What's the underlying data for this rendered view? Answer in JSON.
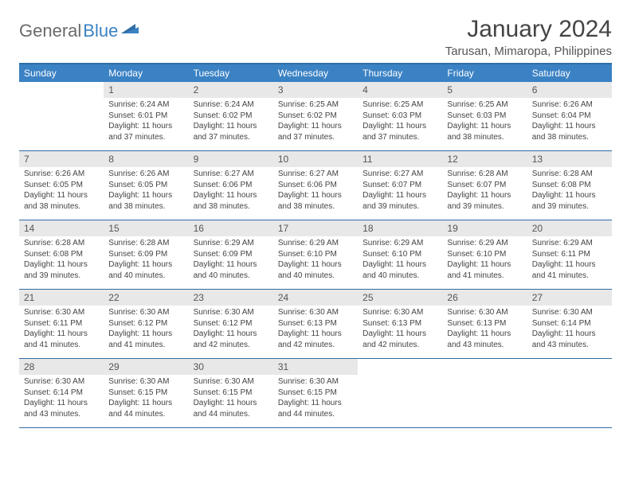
{
  "logo": {
    "text1": "General",
    "text2": "Blue"
  },
  "title": "January 2024",
  "location": "Tarusan, Mimaropa, Philippines",
  "colors": {
    "header_bg": "#3b82c4",
    "header_border": "#2e6da4",
    "daynum_bg": "#e8e8e8",
    "text": "#444444"
  },
  "day_names": [
    "Sunday",
    "Monday",
    "Tuesday",
    "Wednesday",
    "Thursday",
    "Friday",
    "Saturday"
  ],
  "weeks": [
    [
      {
        "n": "",
        "blank": true
      },
      {
        "n": "1",
        "sr": "Sunrise: 6:24 AM",
        "ss": "Sunset: 6:01 PM",
        "d1": "Daylight: 11 hours",
        "d2": "and 37 minutes."
      },
      {
        "n": "2",
        "sr": "Sunrise: 6:24 AM",
        "ss": "Sunset: 6:02 PM",
        "d1": "Daylight: 11 hours",
        "d2": "and 37 minutes."
      },
      {
        "n": "3",
        "sr": "Sunrise: 6:25 AM",
        "ss": "Sunset: 6:02 PM",
        "d1": "Daylight: 11 hours",
        "d2": "and 37 minutes."
      },
      {
        "n": "4",
        "sr": "Sunrise: 6:25 AM",
        "ss": "Sunset: 6:03 PM",
        "d1": "Daylight: 11 hours",
        "d2": "and 37 minutes."
      },
      {
        "n": "5",
        "sr": "Sunrise: 6:25 AM",
        "ss": "Sunset: 6:03 PM",
        "d1": "Daylight: 11 hours",
        "d2": "and 38 minutes."
      },
      {
        "n": "6",
        "sr": "Sunrise: 6:26 AM",
        "ss": "Sunset: 6:04 PM",
        "d1": "Daylight: 11 hours",
        "d2": "and 38 minutes."
      }
    ],
    [
      {
        "n": "7",
        "sr": "Sunrise: 6:26 AM",
        "ss": "Sunset: 6:05 PM",
        "d1": "Daylight: 11 hours",
        "d2": "and 38 minutes."
      },
      {
        "n": "8",
        "sr": "Sunrise: 6:26 AM",
        "ss": "Sunset: 6:05 PM",
        "d1": "Daylight: 11 hours",
        "d2": "and 38 minutes."
      },
      {
        "n": "9",
        "sr": "Sunrise: 6:27 AM",
        "ss": "Sunset: 6:06 PM",
        "d1": "Daylight: 11 hours",
        "d2": "and 38 minutes."
      },
      {
        "n": "10",
        "sr": "Sunrise: 6:27 AM",
        "ss": "Sunset: 6:06 PM",
        "d1": "Daylight: 11 hours",
        "d2": "and 38 minutes."
      },
      {
        "n": "11",
        "sr": "Sunrise: 6:27 AM",
        "ss": "Sunset: 6:07 PM",
        "d1": "Daylight: 11 hours",
        "d2": "and 39 minutes."
      },
      {
        "n": "12",
        "sr": "Sunrise: 6:28 AM",
        "ss": "Sunset: 6:07 PM",
        "d1": "Daylight: 11 hours",
        "d2": "and 39 minutes."
      },
      {
        "n": "13",
        "sr": "Sunrise: 6:28 AM",
        "ss": "Sunset: 6:08 PM",
        "d1": "Daylight: 11 hours",
        "d2": "and 39 minutes."
      }
    ],
    [
      {
        "n": "14",
        "sr": "Sunrise: 6:28 AM",
        "ss": "Sunset: 6:08 PM",
        "d1": "Daylight: 11 hours",
        "d2": "and 39 minutes."
      },
      {
        "n": "15",
        "sr": "Sunrise: 6:28 AM",
        "ss": "Sunset: 6:09 PM",
        "d1": "Daylight: 11 hours",
        "d2": "and 40 minutes."
      },
      {
        "n": "16",
        "sr": "Sunrise: 6:29 AM",
        "ss": "Sunset: 6:09 PM",
        "d1": "Daylight: 11 hours",
        "d2": "and 40 minutes."
      },
      {
        "n": "17",
        "sr": "Sunrise: 6:29 AM",
        "ss": "Sunset: 6:10 PM",
        "d1": "Daylight: 11 hours",
        "d2": "and 40 minutes."
      },
      {
        "n": "18",
        "sr": "Sunrise: 6:29 AM",
        "ss": "Sunset: 6:10 PM",
        "d1": "Daylight: 11 hours",
        "d2": "and 40 minutes."
      },
      {
        "n": "19",
        "sr": "Sunrise: 6:29 AM",
        "ss": "Sunset: 6:10 PM",
        "d1": "Daylight: 11 hours",
        "d2": "and 41 minutes."
      },
      {
        "n": "20",
        "sr": "Sunrise: 6:29 AM",
        "ss": "Sunset: 6:11 PM",
        "d1": "Daylight: 11 hours",
        "d2": "and 41 minutes."
      }
    ],
    [
      {
        "n": "21",
        "sr": "Sunrise: 6:30 AM",
        "ss": "Sunset: 6:11 PM",
        "d1": "Daylight: 11 hours",
        "d2": "and 41 minutes."
      },
      {
        "n": "22",
        "sr": "Sunrise: 6:30 AM",
        "ss": "Sunset: 6:12 PM",
        "d1": "Daylight: 11 hours",
        "d2": "and 41 minutes."
      },
      {
        "n": "23",
        "sr": "Sunrise: 6:30 AM",
        "ss": "Sunset: 6:12 PM",
        "d1": "Daylight: 11 hours",
        "d2": "and 42 minutes."
      },
      {
        "n": "24",
        "sr": "Sunrise: 6:30 AM",
        "ss": "Sunset: 6:13 PM",
        "d1": "Daylight: 11 hours",
        "d2": "and 42 minutes."
      },
      {
        "n": "25",
        "sr": "Sunrise: 6:30 AM",
        "ss": "Sunset: 6:13 PM",
        "d1": "Daylight: 11 hours",
        "d2": "and 42 minutes."
      },
      {
        "n": "26",
        "sr": "Sunrise: 6:30 AM",
        "ss": "Sunset: 6:13 PM",
        "d1": "Daylight: 11 hours",
        "d2": "and 43 minutes."
      },
      {
        "n": "27",
        "sr": "Sunrise: 6:30 AM",
        "ss": "Sunset: 6:14 PM",
        "d1": "Daylight: 11 hours",
        "d2": "and 43 minutes."
      }
    ],
    [
      {
        "n": "28",
        "sr": "Sunrise: 6:30 AM",
        "ss": "Sunset: 6:14 PM",
        "d1": "Daylight: 11 hours",
        "d2": "and 43 minutes."
      },
      {
        "n": "29",
        "sr": "Sunrise: 6:30 AM",
        "ss": "Sunset: 6:15 PM",
        "d1": "Daylight: 11 hours",
        "d2": "and 44 minutes."
      },
      {
        "n": "30",
        "sr": "Sunrise: 6:30 AM",
        "ss": "Sunset: 6:15 PM",
        "d1": "Daylight: 11 hours",
        "d2": "and 44 minutes."
      },
      {
        "n": "31",
        "sr": "Sunrise: 6:30 AM",
        "ss": "Sunset: 6:15 PM",
        "d1": "Daylight: 11 hours",
        "d2": "and 44 minutes."
      },
      {
        "n": "",
        "blank": true
      },
      {
        "n": "",
        "blank": true
      },
      {
        "n": "",
        "blank": true
      }
    ]
  ]
}
